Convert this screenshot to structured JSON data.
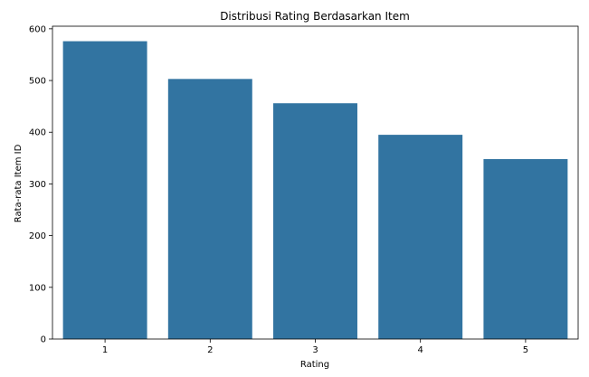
{
  "chart_data": {
    "type": "bar",
    "title": "Distribusi Rating Berdasarkan Item",
    "xlabel": "Rating",
    "ylabel": "Rata-rata Item ID",
    "categories": [
      "1",
      "2",
      "3",
      "4",
      "5"
    ],
    "values": [
      576,
      503,
      456,
      395,
      348
    ],
    "ylim": [
      0,
      605
    ],
    "yticks": [
      0,
      100,
      200,
      300,
      400,
      500,
      600
    ],
    "grid": false,
    "colors": {
      "bar": "#3274a1",
      "axis": "#000000"
    }
  }
}
